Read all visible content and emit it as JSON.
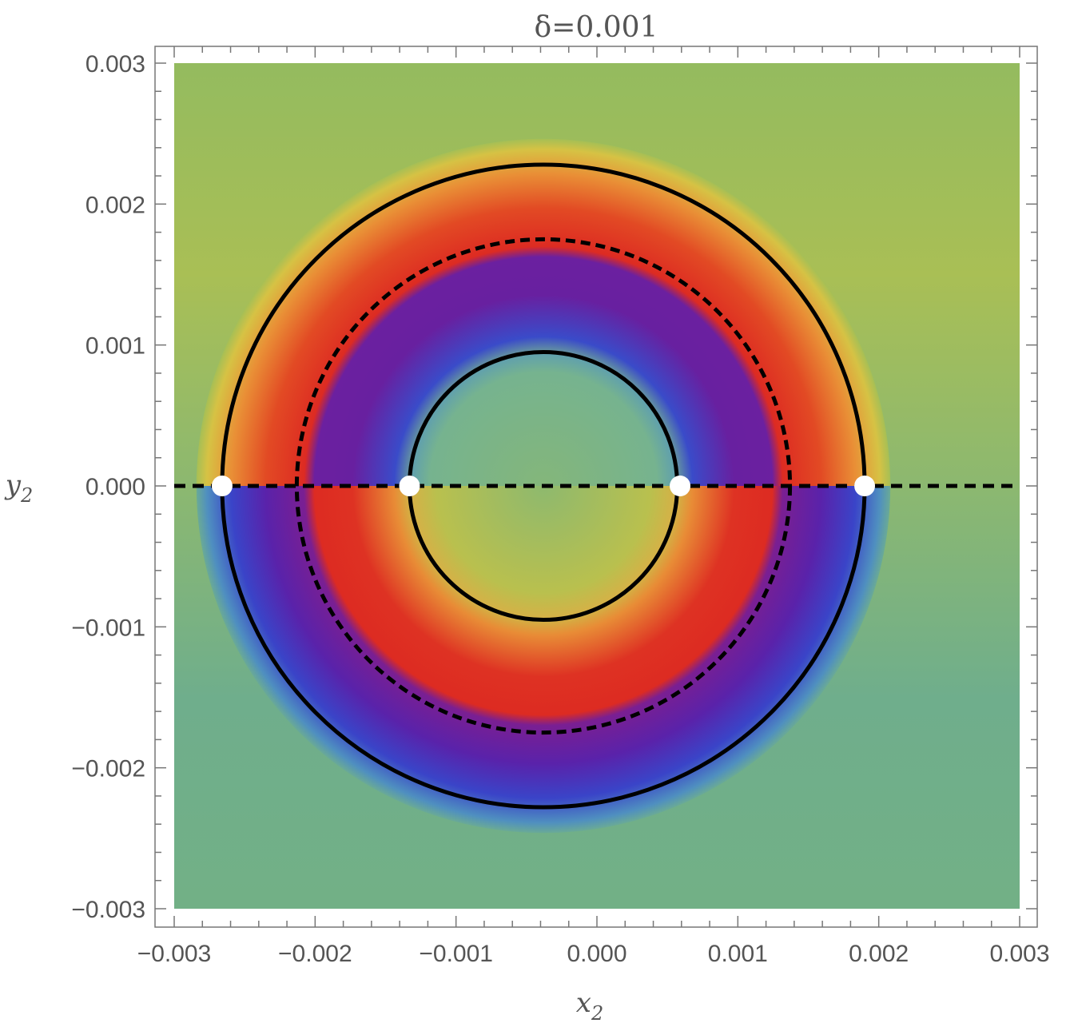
{
  "chart_data": {
    "type": "heatmap",
    "title": "δ=0.001",
    "xlabel": "x",
    "xlabel_sub": "2",
    "ylabel": "y",
    "ylabel_sub": "2",
    "xlim": [
      -0.003,
      0.003
    ],
    "ylim": [
      -0.003,
      0.003
    ],
    "x_ticks": [
      "−0.003",
      "−0.002",
      "−0.001",
      "0.000",
      "0.001",
      "0.002",
      "0.003"
    ],
    "x_tick_values": [
      -0.003,
      -0.002,
      -0.001,
      0.0,
      0.001,
      0.002,
      0.003
    ],
    "y_ticks": [
      "0.003",
      "0.002",
      "0.001",
      "0.000",
      "−0.001",
      "−0.002",
      "−0.003"
    ],
    "y_tick_values": [
      0.003,
      0.002,
      0.001,
      0.0,
      -0.001,
      -0.002,
      -0.003
    ],
    "grid": false,
    "colormap": "rainbow (green → yellow → red → purple → blue)",
    "colors": {
      "background_field": "#8cb870",
      "yellow": "#d8c043",
      "orange": "#e88a35",
      "red": "#dd2b22",
      "purple": "#6b20a0",
      "blue": "#3640c8",
      "curve": "#000000",
      "point": "#ffffff"
    },
    "circles": [
      {
        "name": "outer",
        "style": "solid",
        "cx": -0.00038,
        "cy": 0.0,
        "r": 0.00228
      },
      {
        "name": "middle",
        "style": "dashed",
        "cx": -0.00038,
        "cy": 0.0,
        "r": 0.00175
      },
      {
        "name": "inner",
        "style": "solid",
        "cx": -0.00038,
        "cy": 0.0,
        "r": 0.00095
      }
    ],
    "horizontal_line": {
      "y": 0.0,
      "style": "dashed"
    },
    "points": [
      {
        "x": -0.00266,
        "y": 0.0
      },
      {
        "x": -0.00133,
        "y": 0.0
      },
      {
        "x": 0.00059,
        "y": 0.0
      },
      {
        "x": 0.0019,
        "y": 0.0
      }
    ]
  }
}
